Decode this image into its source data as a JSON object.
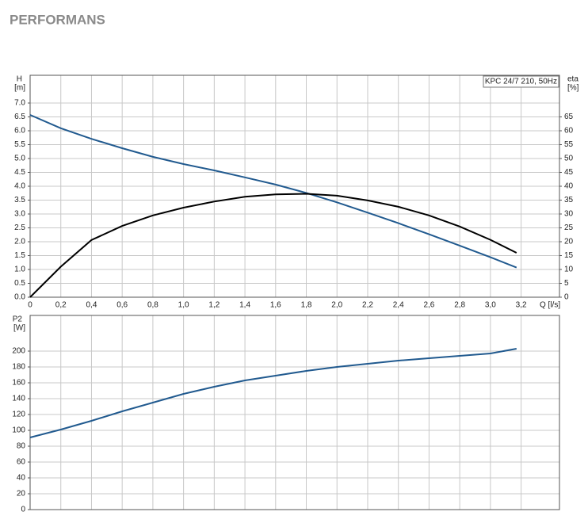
{
  "page_title": "PERFORMANS",
  "chart_data": [
    {
      "type": "line",
      "annotation": "KPC 24/7 210, 50Hz",
      "xlabel": "Q [l/s]",
      "ylabel": "H",
      "ylabel_unit": "[m]",
      "y2label": "eta",
      "y2label_unit": "[%]",
      "x": [
        0,
        0.2,
        0.4,
        0.6,
        0.8,
        1.0,
        1.2,
        1.4,
        1.6,
        1.8,
        2.0,
        2.2,
        2.4,
        2.6,
        2.8,
        3.0,
        3.17
      ],
      "series": [
        {
          "color": "#215a8f",
          "values": [
            6.57,
            6.09,
            5.71,
            5.37,
            5.06,
            4.8,
            4.57,
            4.32,
            4.06,
            3.76,
            3.42,
            3.05,
            2.67,
            2.27,
            1.86,
            1.44,
            1.07
          ]
        },
        {
          "color": "#000000",
          "axis": "y2",
          "values": [
            0,
            11,
            20.6,
            25.7,
            29.5,
            32.3,
            34.5,
            36.2,
            37.1,
            37.3,
            36.6,
            34.9,
            32.6,
            29.5,
            25.5,
            20.7,
            16
          ]
        }
      ],
      "xlim": [
        0,
        3.45
      ],
      "xticks": [
        0,
        {
          "value": 0.2,
          "label": "0,2"
        },
        {
          "value": 0.4,
          "label": "0,4"
        },
        {
          "value": 0.6,
          "label": "0,6"
        },
        {
          "value": 0.8,
          "label": "0,8"
        },
        {
          "value": 1.0,
          "label": "1,0"
        },
        {
          "value": 1.2,
          "label": "1,2"
        },
        {
          "value": 1.4,
          "label": "1,4"
        },
        {
          "value": 1.6,
          "label": "1,6"
        },
        {
          "value": 1.8,
          "label": "1,8"
        },
        {
          "value": 2.0,
          "label": "2,0"
        },
        {
          "value": 2.2,
          "label": "2,2"
        },
        {
          "value": 2.4,
          "label": "2,4"
        },
        {
          "value": 2.6,
          "label": "2,6"
        },
        {
          "value": 2.8,
          "label": "2,8"
        },
        {
          "value": 3.0,
          "label": "3,0"
        },
        {
          "value": 3.2,
          "label": "3,2"
        }
      ],
      "ylim": [
        0,
        8
      ],
      "yticks": [
        {
          "value": 0,
          "label": "0.0"
        },
        0.5,
        {
          "value": 1,
          "label": "1.0"
        },
        1.5,
        {
          "value": 2,
          "label": "2.0"
        },
        2.5,
        {
          "value": 3,
          "label": "3.0"
        },
        3.5,
        {
          "value": 4,
          "label": "4.0"
        },
        4.5,
        {
          "value": 5,
          "label": "5.0"
        },
        5.5,
        {
          "value": 6,
          "label": "6.0"
        },
        6.5,
        {
          "value": 7,
          "label": "7.0"
        }
      ],
      "y2lim": [
        0,
        80
      ],
      "y2ticks": [
        0,
        5,
        10,
        15,
        20,
        25,
        30,
        35,
        40,
        45,
        50,
        55,
        60,
        65
      ],
      "grid": true
    },
    {
      "type": "line",
      "ylabel": "P2",
      "ylabel_unit": "[W]",
      "x": [
        0,
        0.2,
        0.4,
        0.6,
        0.8,
        1.0,
        1.2,
        1.4,
        1.6,
        1.8,
        2.0,
        2.2,
        2.4,
        2.6,
        2.8,
        3.0,
        3.17
      ],
      "series": [
        {
          "color": "#215a8f",
          "values": [
            91,
            101,
            112,
            124,
            135,
            146,
            155,
            163,
            169,
            175,
            180,
            184,
            188,
            191,
            194,
            197,
            203
          ]
        }
      ],
      "xlim": [
        0,
        3.45
      ],
      "ylim": [
        0,
        245
      ],
      "yticks": [
        0,
        20,
        40,
        60,
        80,
        100,
        120,
        140,
        160,
        180,
        200
      ],
      "grid": true
    }
  ]
}
